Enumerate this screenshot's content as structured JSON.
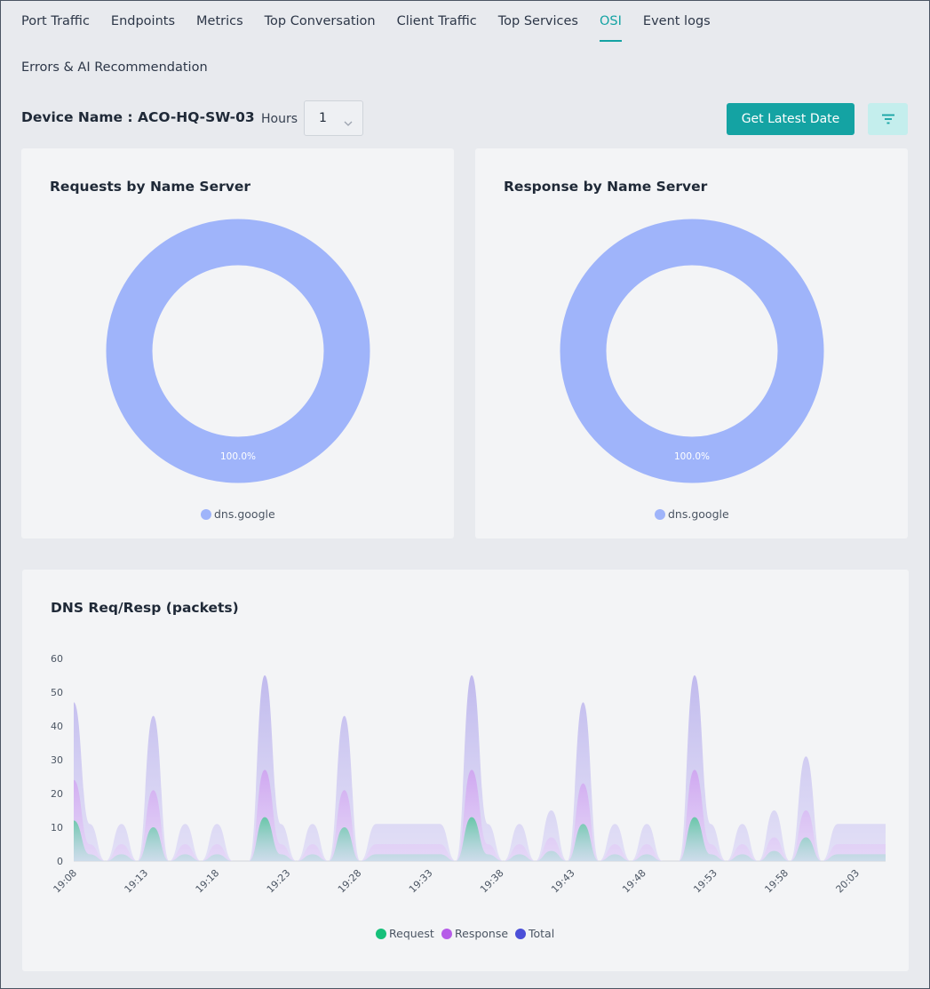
{
  "tabs": [
    "Port Traffic",
    "Endpoints",
    "Metrics",
    "Top Conversation",
    "Client Traffic",
    "Top Services",
    "OSI",
    "Event logs"
  ],
  "tab_row2": "Errors & AI Recommendation",
  "active_tab": "OSI",
  "toolbar": {
    "device_label": "Device Name : ACO-HQ-SW-03",
    "hours_label": "Hours",
    "hours_value": "1",
    "latest_button": "Get Latest Date",
    "filter_icon": "filter-icon"
  },
  "colors": {
    "accent": "#14a3a3",
    "donut": "#9fb4fa",
    "request": "#16c07a",
    "response": "#b65ce8",
    "total": "#4b4fd8"
  },
  "donut_left": {
    "title": "Requests by Name Server",
    "label": "100.0%",
    "legend": "dns.google"
  },
  "donut_right": {
    "title": "Response by Name Server",
    "label": "100.0%",
    "legend": "dns.google"
  },
  "dns_chart": {
    "title": "DNS Req/Resp (packets)",
    "legend": [
      "Request",
      "Response",
      "Total"
    ]
  },
  "chart_data": [
    {
      "type": "pie",
      "title": "Requests by Name Server",
      "labels": [
        "dns.google"
      ],
      "values": [
        100.0
      ],
      "donut": true
    },
    {
      "type": "pie",
      "title": "Response by Name Server",
      "labels": [
        "dns.google"
      ],
      "values": [
        100.0
      ],
      "donut": true
    },
    {
      "type": "area",
      "title": "DNS Req/Resp (packets)",
      "ylim": [
        0,
        60
      ],
      "yticks": [
        0,
        10,
        20,
        30,
        40,
        50,
        60
      ],
      "xticks": [
        "19:08",
        "19:13",
        "19:18",
        "19:23",
        "19:28",
        "19:33",
        "19:38",
        "19:43",
        "19:48",
        "19:53",
        "19:58",
        "20:03"
      ],
      "series": [
        {
          "name": "Request",
          "values": [
            12,
            2,
            0,
            2,
            0,
            10,
            0,
            2,
            0,
            2,
            0,
            0,
            13,
            2,
            0,
            2,
            0,
            10,
            0,
            2,
            2,
            2,
            2,
            2,
            0,
            13,
            2,
            0,
            2,
            0,
            3,
            0,
            11,
            0,
            2,
            0,
            2,
            0,
            0,
            13,
            2,
            0,
            2,
            0,
            3,
            0,
            7,
            0,
            2,
            2,
            2,
            2
          ]
        },
        {
          "name": "Response",
          "values": [
            24,
            5,
            0,
            5,
            0,
            21,
            0,
            5,
            0,
            5,
            0,
            0,
            27,
            5,
            0,
            5,
            0,
            21,
            0,
            5,
            5,
            5,
            5,
            5,
            0,
            27,
            5,
            0,
            5,
            0,
            7,
            0,
            23,
            0,
            5,
            0,
            5,
            0,
            0,
            27,
            5,
            0,
            5,
            0,
            7,
            0,
            15,
            0,
            5,
            5,
            5,
            5
          ]
        },
        {
          "name": "Total",
          "values": [
            47,
            11,
            0,
            11,
            0,
            43,
            0,
            11,
            0,
            11,
            0,
            0,
            55,
            11,
            0,
            11,
            0,
            43,
            0,
            11,
            11,
            11,
            11,
            11,
            0,
            55,
            11,
            0,
            11,
            0,
            15,
            0,
            47,
            0,
            11,
            0,
            11,
            0,
            0,
            55,
            11,
            0,
            11,
            0,
            15,
            0,
            31,
            0,
            11,
            11,
            11,
            11
          ]
        }
      ]
    }
  ]
}
